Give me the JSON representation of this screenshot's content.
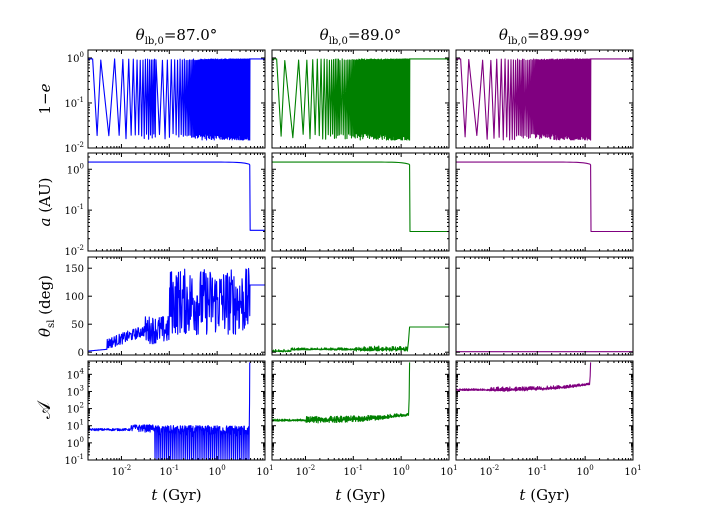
{
  "colors": {
    "col1": "#0000ff",
    "col2": "#008000",
    "col3": "#800080"
  },
  "chart_data": {
    "type": "line",
    "layout": "4 rows x 3 columns grid of panels sharing x axes",
    "columns": [
      {
        "title": "θlb,0=87.0°",
        "title_symbol": "θ",
        "title_subscript": "lb,0",
        "title_value": "=87.0°",
        "color": "#0000ff"
      },
      {
        "title": "θlb,0=89.0°",
        "title_symbol": "θ",
        "title_subscript": "lb,0",
        "title_value": "=89.0°",
        "color": "#008000"
      },
      {
        "title": "θlb,0=89.99°",
        "title_symbol": "θ",
        "title_subscript": "lb,0",
        "title_value": "=89.99°",
        "color": "#800080"
      }
    ],
    "xaxis": {
      "label": "t (Gyr)",
      "label_italic": "t",
      "label_rest": " (Gyr)",
      "scale": "log",
      "xlim": [
        0.002,
        10
      ],
      "ticks": [
        0.01,
        0.1,
        1,
        10
      ],
      "tick_labels": [
        {
          "base": "10",
          "exp": "-2"
        },
        {
          "base": "10",
          "exp": "-1"
        },
        {
          "base": "10",
          "exp": "0"
        },
        {
          "base": "10",
          "exp": "1"
        }
      ]
    },
    "rows": [
      {
        "ylabel": "1−e",
        "scale": "log",
        "ylim": [
          0.01,
          1.5
        ],
        "ticks": [
          0.01,
          0.1,
          1
        ],
        "tick_labels": [
          {
            "base": "10",
            "exp": "-2"
          },
          {
            "base": "10",
            "exp": "-1"
          },
          {
            "base": "10",
            "exp": "0"
          }
        ],
        "series": [
          {
            "column": 0,
            "kind": "kozai",
            "t_end": 4.8,
            "y_max": 0.95,
            "y_min": 0.015,
            "final": 0.95
          },
          {
            "column": 1,
            "kind": "kozai",
            "t_end": 1.5,
            "y_max": 0.95,
            "y_min": 0.015,
            "final": 0.95
          },
          {
            "column": 2,
            "kind": "kozai",
            "t_end": 1.3,
            "y_max": 0.95,
            "y_min": 0.015,
            "final": 0.95
          }
        ]
      },
      {
        "ylabel": "a (AU)",
        "scale": "log",
        "ylim": [
          0.01,
          2.5
        ],
        "ticks": [
          0.01,
          0.1,
          1
        ],
        "tick_labels": [
          {
            "base": "10",
            "exp": "-2"
          },
          {
            "base": "10",
            "exp": "-1"
          },
          {
            "base": "10",
            "exp": "0"
          }
        ],
        "series": [
          {
            "column": 0,
            "kind": "step",
            "t_end": 4.8,
            "initial": 1.5,
            "final": 0.032
          },
          {
            "column": 1,
            "kind": "step",
            "t_end": 1.5,
            "initial": 1.5,
            "final": 0.03
          },
          {
            "column": 2,
            "kind": "step",
            "t_end": 1.3,
            "initial": 1.5,
            "final": 0.03
          }
        ]
      },
      {
        "ylabel": "θsl (deg)",
        "scale": "linear",
        "ylim": [
          -5,
          170
        ],
        "ticks": [
          0,
          50,
          100,
          150
        ],
        "tick_labels": [
          {
            "base": "0"
          },
          {
            "base": "50"
          },
          {
            "base": "100"
          },
          {
            "base": "150"
          }
        ],
        "series": [
          {
            "column": 0,
            "kind": "chaotic",
            "t_end": 4.8,
            "initial": 2,
            "final": 120
          },
          {
            "column": 1,
            "kind": "small",
            "t_end": 1.5,
            "initial": 2,
            "final": 45
          },
          {
            "column": 2,
            "kind": "flat",
            "t_end": 1.3,
            "initial": 1,
            "final": 1
          }
        ]
      },
      {
        "ylabel": "𝒜",
        "scale": "log",
        "ylim": [
          0.1,
          60000
        ],
        "ticks": [
          0.1,
          1,
          10,
          100,
          1000,
          10000
        ],
        "tick_labels": [
          {
            "base": "10",
            "exp": "-1"
          },
          {
            "base": "10",
            "exp": "0"
          },
          {
            "base": "10",
            "exp": "1"
          },
          {
            "base": "10",
            "exp": "2"
          },
          {
            "base": "10",
            "exp": "3"
          },
          {
            "base": "10",
            "exp": "4"
          }
        ],
        "series": [
          {
            "column": 0,
            "kind": "adiab_low",
            "t_end": 4.8,
            "initial": 6,
            "final": 50000
          },
          {
            "column": 1,
            "kind": "adiab_mid",
            "t_end": 1.5,
            "initial": 20,
            "final": 50000
          },
          {
            "column": 2,
            "kind": "adiab_high",
            "t_end": 1.3,
            "initial": 1200,
            "final": 50000
          }
        ]
      }
    ]
  }
}
